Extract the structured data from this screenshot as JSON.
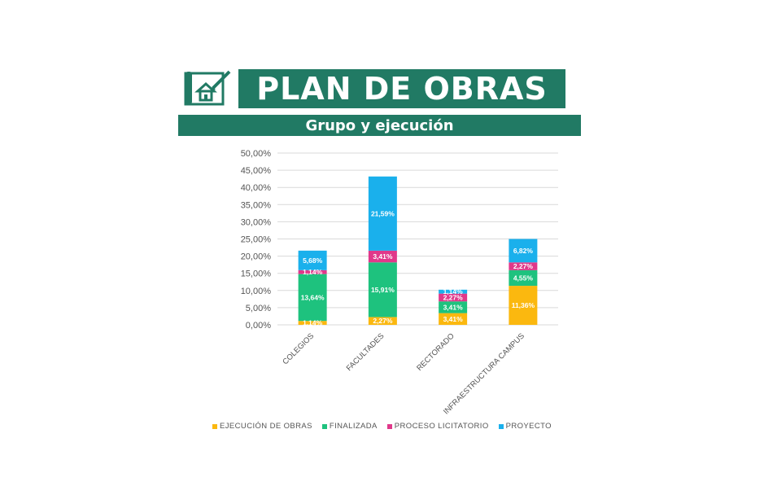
{
  "header": {
    "title": "PLAN DE OBRAS",
    "subtitle": "Grupo y ejecución",
    "icon": "construction-plan-icon"
  },
  "colors": {
    "brand": "#217a64",
    "ejecucion": "#fbb80f",
    "finalizada": "#1ec27e",
    "licitatorio": "#e0388a",
    "proyecto": "#1ab0ec"
  },
  "chart_data": {
    "type": "bar",
    "stacked": true,
    "categories": [
      "COLEGIOS",
      "FACULTADES",
      "RECTORADO",
      "INFRAESTRUCTURA CAMPUS"
    ],
    "series": [
      {
        "name": "EJECUCIÓN DE OBRAS",
        "color": "#fbb80f",
        "values": [
          1.14,
          2.27,
          3.41,
          11.36
        ],
        "labels": [
          "1,14%",
          "2,27%",
          "3,41%",
          "11,36%"
        ]
      },
      {
        "name": "FINALIZADA",
        "color": "#1ec27e",
        "values": [
          13.64,
          15.91,
          3.41,
          4.55
        ],
        "labels": [
          "13,64%",
          "15,91%",
          "3,41%",
          "4,55%"
        ]
      },
      {
        "name": "PROCESO LICITATORIO",
        "color": "#e0388a",
        "values": [
          1.14,
          3.41,
          2.27,
          2.27
        ],
        "labels": [
          "1,14%",
          "3,41%",
          "2,27%",
          "2,27%"
        ]
      },
      {
        "name": "PROYECTO",
        "color": "#1ab0ec",
        "values": [
          5.68,
          21.59,
          1.14,
          6.82
        ],
        "labels": [
          "5,68%",
          "21,59%",
          "1,14%",
          "6,82%"
        ]
      }
    ],
    "ylim": [
      0,
      50
    ],
    "yticks": [
      "0,00%",
      "5,00%",
      "10,00%",
      "15,00%",
      "20,00%",
      "25,00%",
      "30,00%",
      "35,00%",
      "40,00%",
      "45,00%",
      "50,00%"
    ],
    "grid": true,
    "legend": "bottom"
  }
}
